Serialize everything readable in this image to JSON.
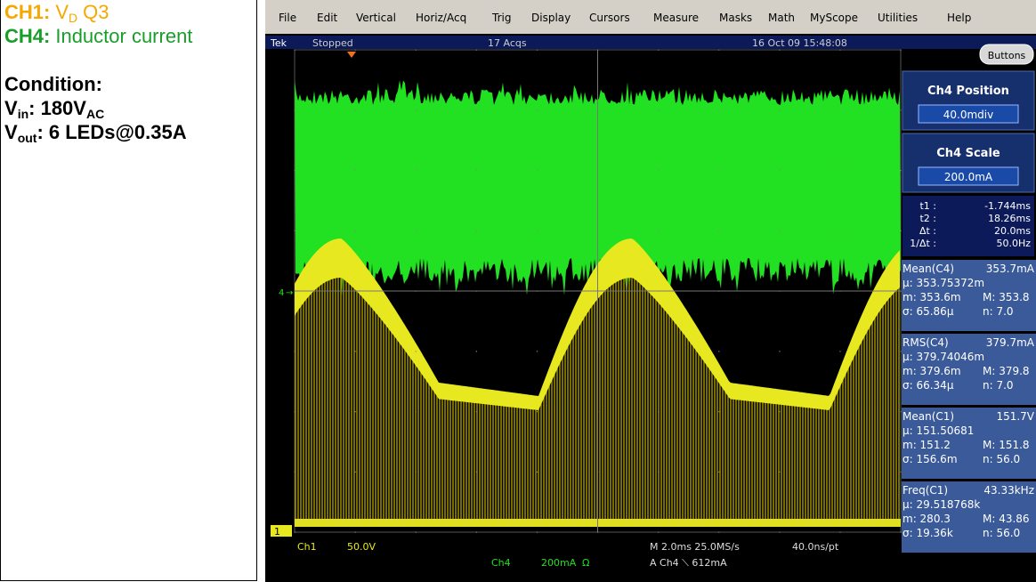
{
  "legend": {
    "ch1": {
      "label": "CH1:",
      "symbol": "V",
      "subscript": "D",
      "text": "Q3"
    },
    "ch4": {
      "label": "CH4:",
      "text": "Inductor current"
    }
  },
  "condition": {
    "title": "Condition:",
    "vin": {
      "symbol": "V",
      "subscript": "in",
      "text": ": 180V",
      "unit_subscript": "AC"
    },
    "vout": {
      "symbol": "V",
      "subscript": "out",
      "text": ": 6 LEDs@0.35A"
    }
  },
  "scope": {
    "menu": [
      "File",
      "Edit",
      "Vertical",
      "Horiz/Acq",
      "Trig",
      "Display",
      "Cursors",
      "Measure",
      "Masks",
      "Math",
      "MyScope",
      "Utilities",
      "Help"
    ],
    "status": {
      "brand": "Tek",
      "state": "Stopped",
      "acqs": "17 Acqs",
      "timestamp": "16 Oct 09 15:48:08"
    },
    "buttons": "Buttons",
    "ch4_position": {
      "title": "Ch4 Position",
      "value": "40.0mdiv"
    },
    "ch4_scale": {
      "title": "Ch4 Scale",
      "value": "200.0mA"
    },
    "cursors": [
      [
        "t1 :",
        "-1.744ms"
      ],
      [
        "t2 :",
        "18.26ms"
      ],
      [
        "Δt :",
        "20.0ms"
      ],
      [
        "1/Δt :",
        "50.0Hz"
      ]
    ],
    "measurements": [
      {
        "name": "Mean(C4)",
        "value": "353.7mA",
        "mu": "µ: 353.75372m",
        "min": "m: 353.6m",
        "max": "M: 353.8",
        "sigma": "σ: 65.86µ",
        "n": "n: 7.0"
      },
      {
        "name": "RMS(C4)",
        "value": "379.7mA",
        "mu": "µ: 379.74046m",
        "min": "m: 379.6m",
        "max": "M: 379.8",
        "sigma": "σ: 66.34µ",
        "n": "n: 7.0"
      },
      {
        "name": "Mean(C1)",
        "value": "151.7V",
        "mu": "µ: 151.50681",
        "min": "m: 151.2",
        "max": "M: 151.8",
        "sigma": "σ: 156.6m",
        "n": "n: 56.0"
      },
      {
        "name": "Freq(C1)",
        "value": "43.33kHz",
        "mu": "µ: 29.518768k",
        "min": "m: 280.3",
        "max": "M: 43.86",
        "sigma": "σ: 19.36k",
        "n": "n: 56.0"
      }
    ],
    "markers": {
      "ch4": "4",
      "ch1": "1"
    },
    "readout": {
      "ch1": "Ch1",
      "ch1_scale": "50.0V",
      "ch4": "Ch4",
      "ch4_scale": "200mA",
      "ch4_impedance": "Ω",
      "horizontal": "M 2.0ms 25.0MS/s",
      "resolution": "40.0ns/pt",
      "trigger": "A Ch4 ⟍ 612mA"
    }
  }
}
